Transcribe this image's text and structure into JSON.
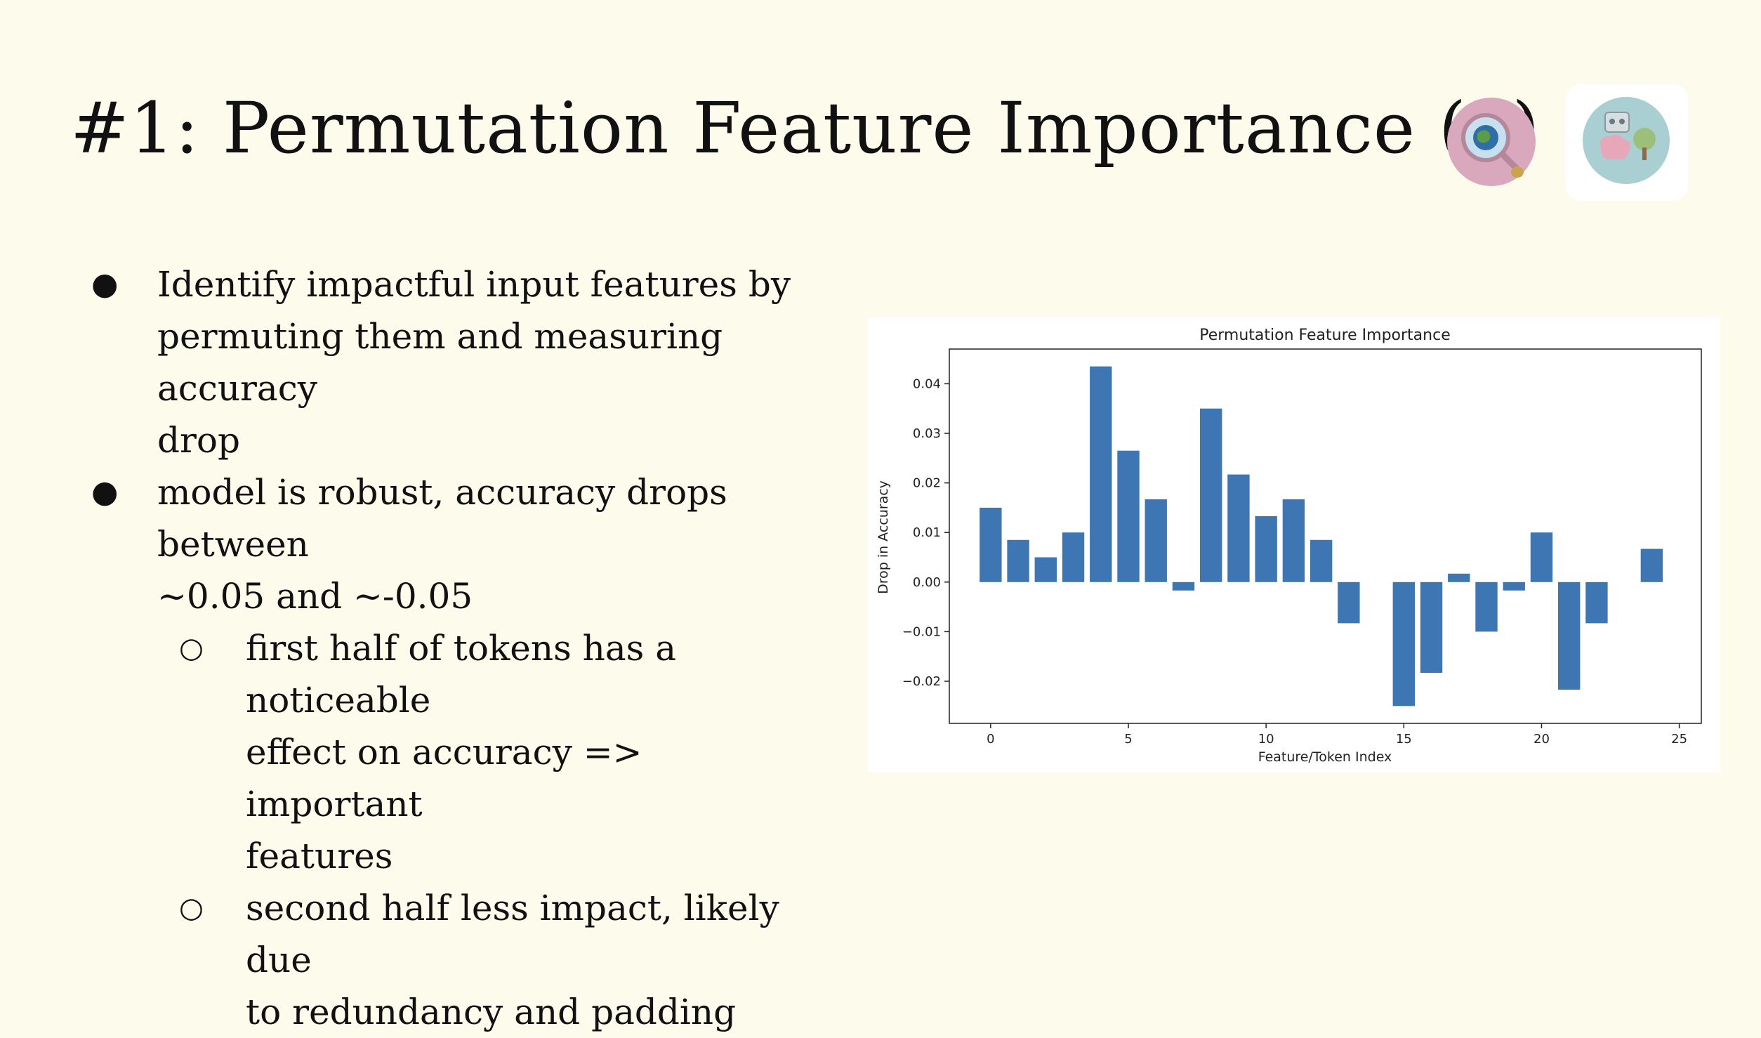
{
  "slide": {
    "title": "#1: Permutation Feature Importance (1)",
    "bullets": [
      {
        "text": "Identify impactful input features by permuting them and measuring accuracy drop",
        "lines": [
          "Identify impactful input features by",
          "permuting them and measuring accuracy",
          "drop"
        ]
      },
      {
        "text": "model is robust, accuracy drops between ~0.05 and ~-0.05",
        "lines": [
          "model is robust, accuracy drops between",
          "~0.05 and ~-0.05"
        ],
        "subbullets": [
          {
            "text": "first half of tokens has a noticeable effect on accuracy => important features",
            "lines": [
              "first half of tokens has a noticeable",
              "effect on accuracy => important",
              "features"
            ]
          },
          {
            "text": "second half less impact, likely due to redundancy and padding",
            "lines": [
              "second half less impact, likely due",
              "to redundancy and padding"
            ]
          }
        ]
      }
    ],
    "icons": [
      "magnifier-globe-logo",
      "robot-brain-tree-logo"
    ],
    "colors": {
      "background": "#fdfbec",
      "bar": "#3d76b2"
    }
  },
  "chart_data": {
    "type": "bar",
    "title": "Permutation Feature Importance",
    "xlabel": "Feature/Token Index",
    "ylabel": "Drop in Accuracy",
    "x": [
      0,
      1,
      2,
      3,
      4,
      5,
      6,
      7,
      8,
      9,
      10,
      11,
      12,
      13,
      14,
      15,
      16,
      17,
      18,
      19,
      20,
      21,
      22,
      23,
      24
    ],
    "values": [
      0.015,
      0.0085,
      0.005,
      0.01,
      0.0435,
      0.0265,
      0.0167,
      -0.0017,
      0.035,
      0.0217,
      0.0133,
      0.0167,
      0.0085,
      -0.0083,
      0.0,
      -0.025,
      -0.0183,
      0.0017,
      -0.01,
      -0.0017,
      0.01,
      -0.0217,
      -0.0083,
      0.0,
      0.0067
    ],
    "xticks": [
      "0",
      "5",
      "10",
      "15",
      "20",
      "25"
    ],
    "yticks": [
      "−0.02",
      "−0.01",
      "0.00",
      "0.01",
      "0.02",
      "0.03",
      "0.04"
    ],
    "xlim": [
      -1.5,
      25.8
    ],
    "ylim": [
      -0.0285,
      0.047
    ],
    "grid": false
  }
}
